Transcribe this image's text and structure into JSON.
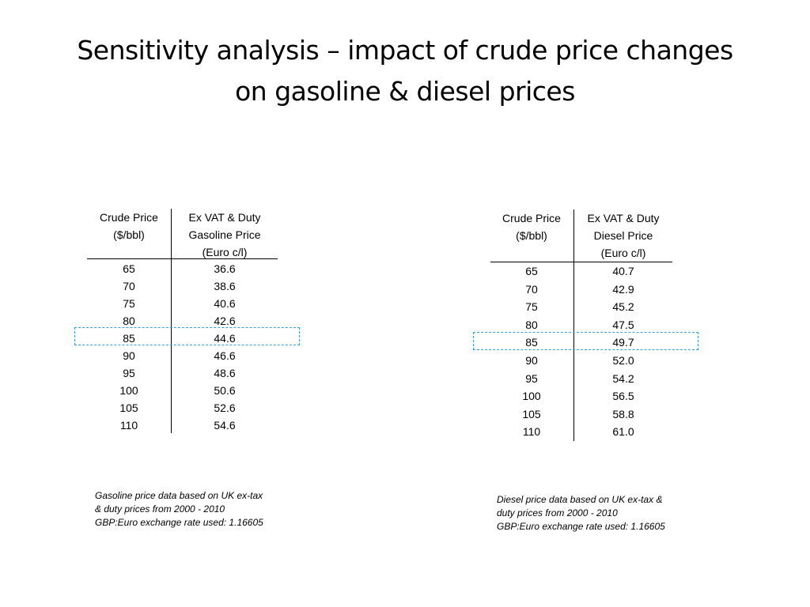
{
  "title": {
    "line1": "Sensitivity analysis – impact of crude price changes",
    "line2": "on gasoline & diesel prices"
  },
  "gasoline_table": {
    "col1_header": [
      "Crude Price",
      "($/bbl)"
    ],
    "col2_header": [
      "Ex VAT & Duty",
      "Gasoline Price",
      "(Euro c/l)"
    ],
    "highlighted_crude": "85",
    "rows": [
      {
        "crude": "65",
        "price": "36.6"
      },
      {
        "crude": "70",
        "price": "38.6"
      },
      {
        "crude": "75",
        "price": "40.6"
      },
      {
        "crude": "80",
        "price": "42.6"
      },
      {
        "crude": "85",
        "price": "44.6"
      },
      {
        "crude": "90",
        "price": "46.6"
      },
      {
        "crude": "95",
        "price": "48.6"
      },
      {
        "crude": "100",
        "price": "50.6"
      },
      {
        "crude": "105",
        "price": "52.6"
      },
      {
        "crude": "110",
        "price": "54.6"
      }
    ]
  },
  "diesel_table": {
    "col1_header": [
      "Crude Price",
      "($/bbl)"
    ],
    "col2_header": [
      "Ex VAT & Duty",
      "Diesel Price",
      "(Euro c/l)"
    ],
    "highlighted_crude": "85",
    "rows": [
      {
        "crude": "65",
        "price": "40.7"
      },
      {
        "crude": "70",
        "price": "42.9"
      },
      {
        "crude": "75",
        "price": "45.2"
      },
      {
        "crude": "80",
        "price": "47.5"
      },
      {
        "crude": "85",
        "price": "49.7"
      },
      {
        "crude": "90",
        "price": "52.0"
      },
      {
        "crude": "95",
        "price": "54.2"
      },
      {
        "crude": "100",
        "price": "56.5"
      },
      {
        "crude": "105",
        "price": "58.8"
      },
      {
        "crude": "110",
        "price": "61.0"
      }
    ]
  },
  "gasoline_note": {
    "line1": "Gasoline price data based on UK ex-tax",
    "line2": "& duty prices from 2000 - 2010",
    "line3": "GBP:Euro exchange rate used: 1.16605"
  },
  "diesel_note": {
    "line1": "Diesel price data based on UK ex-tax &",
    "line2": "duty prices from 2000 - 2010",
    "line3": "GBP:Euro exchange rate used: 1.16605"
  },
  "colors": {
    "highlight_border": "#3a9fd0"
  }
}
